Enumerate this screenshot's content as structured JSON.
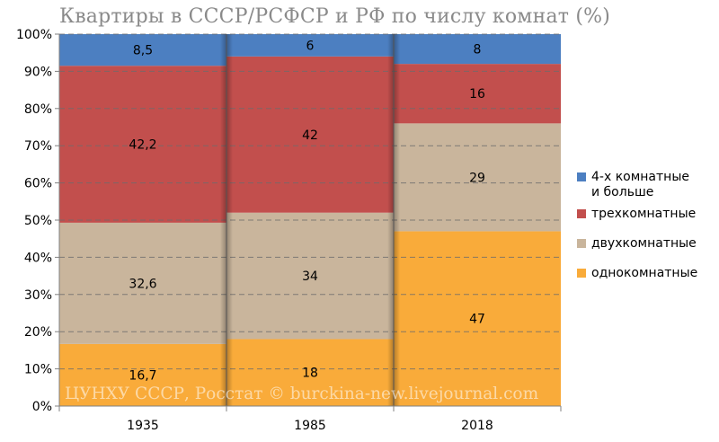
{
  "chart_data": {
    "type": "bar",
    "stacked": true,
    "title": "Квартиры в СССР/РСФСР и РФ по числу комнат (%)",
    "categories": [
      "1935",
      "1985",
      "2018"
    ],
    "y_tick_labels": [
      "0%",
      "10%",
      "20%",
      "30%",
      "40%",
      "50%",
      "60%",
      "70%",
      "80%",
      "90%",
      "100%"
    ],
    "ylim": [
      0,
      100
    ],
    "grid": true,
    "legend_position": "right",
    "watermark": "ЦУНХУ СССР, Росстат © burckina-new.livejournal.com",
    "series": [
      {
        "name": "однокомнатные",
        "color": "#F9AB3A",
        "values": [
          16.7,
          18,
          47
        ],
        "labels": [
          "16,7",
          "18",
          "47"
        ]
      },
      {
        "name": "двухкомнатные",
        "color": "#C9B59C",
        "values": [
          32.6,
          34,
          29
        ],
        "labels": [
          "32,6",
          "34",
          "29"
        ]
      },
      {
        "name": "трехкомнатные",
        "color": "#C24F4D",
        "values": [
          42.2,
          42,
          16
        ],
        "labels": [
          "42,2",
          "42",
          "16"
        ]
      },
      {
        "name": "4-х комнатные и больше",
        "name_lines": [
          "4-х комнатные",
          "и больше"
        ],
        "color": "#4C7FC1",
        "values": [
          8.5,
          6,
          8
        ],
        "labels": [
          "8,5",
          "6",
          "8"
        ]
      }
    ]
  }
}
